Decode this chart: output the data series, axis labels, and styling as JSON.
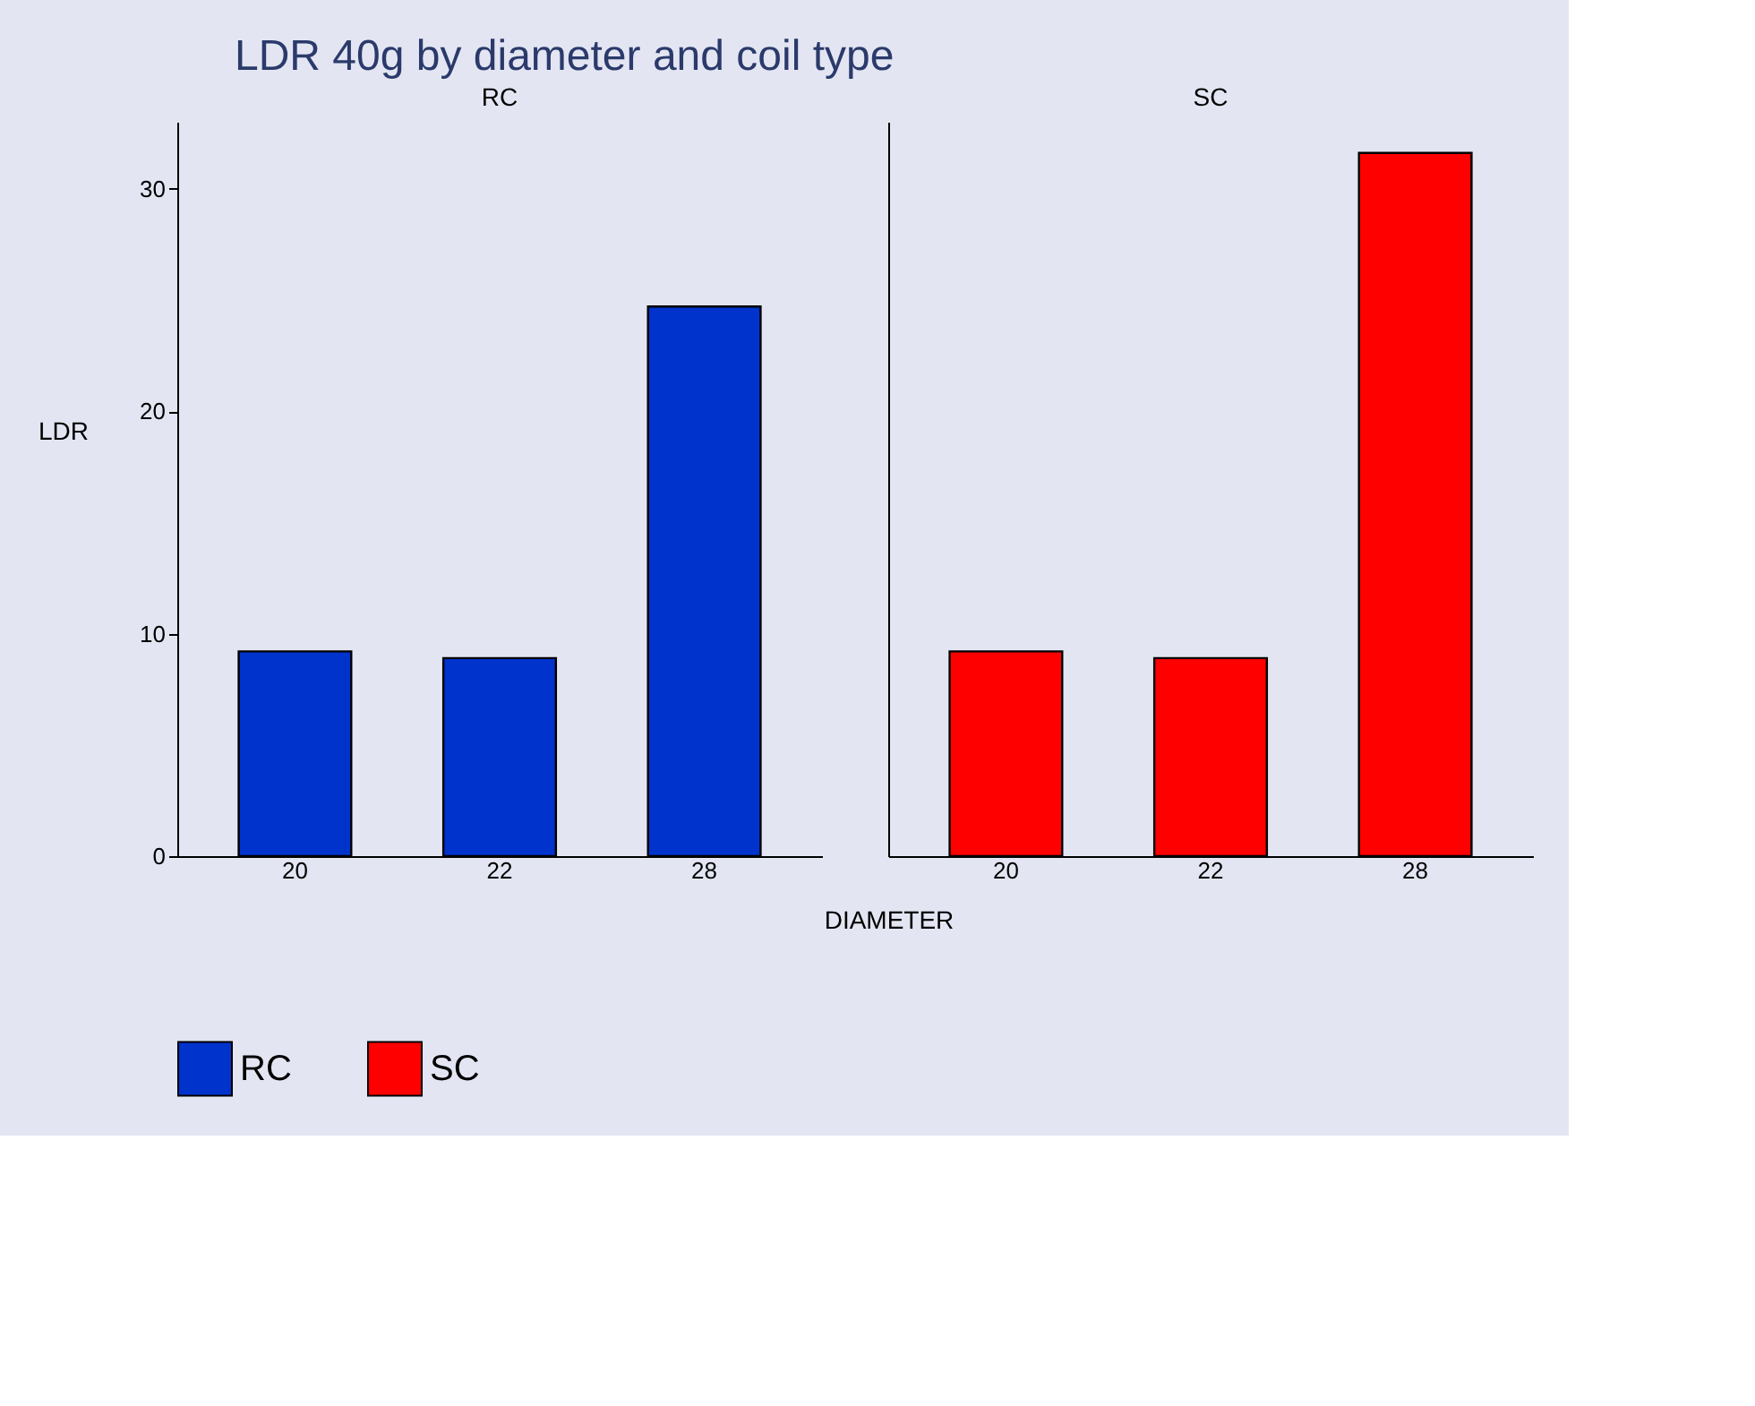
{
  "chart_data": [
    {
      "type": "bar",
      "title": "LDR 40g by diameter and coil type",
      "subtitle": "RC",
      "ylabel": "LDR",
      "categories": [
        "20",
        "22",
        "28"
      ],
      "series": [
        {
          "name": "RC",
          "color": "#0033cc",
          "values": [
            9.2,
            8.9,
            24.7
          ]
        }
      ],
      "ylim": [
        0,
        33
      ],
      "yticks": [
        0,
        10,
        20,
        30
      ],
      "legend": "bottom"
    },
    {
      "type": "bar",
      "subtitle": "SC",
      "xlabel": "DIAMETER",
      "categories": [
        "20",
        "22",
        "28"
      ],
      "series": [
        {
          "name": "SC",
          "color": "#ff0000",
          "values": [
            9.2,
            8.9,
            31.6
          ]
        }
      ],
      "ylim": [
        0,
        33
      ],
      "yticks": [
        0,
        10,
        20,
        30
      ],
      "tick_labels": "x",
      "legend": "bottom"
    }
  ]
}
